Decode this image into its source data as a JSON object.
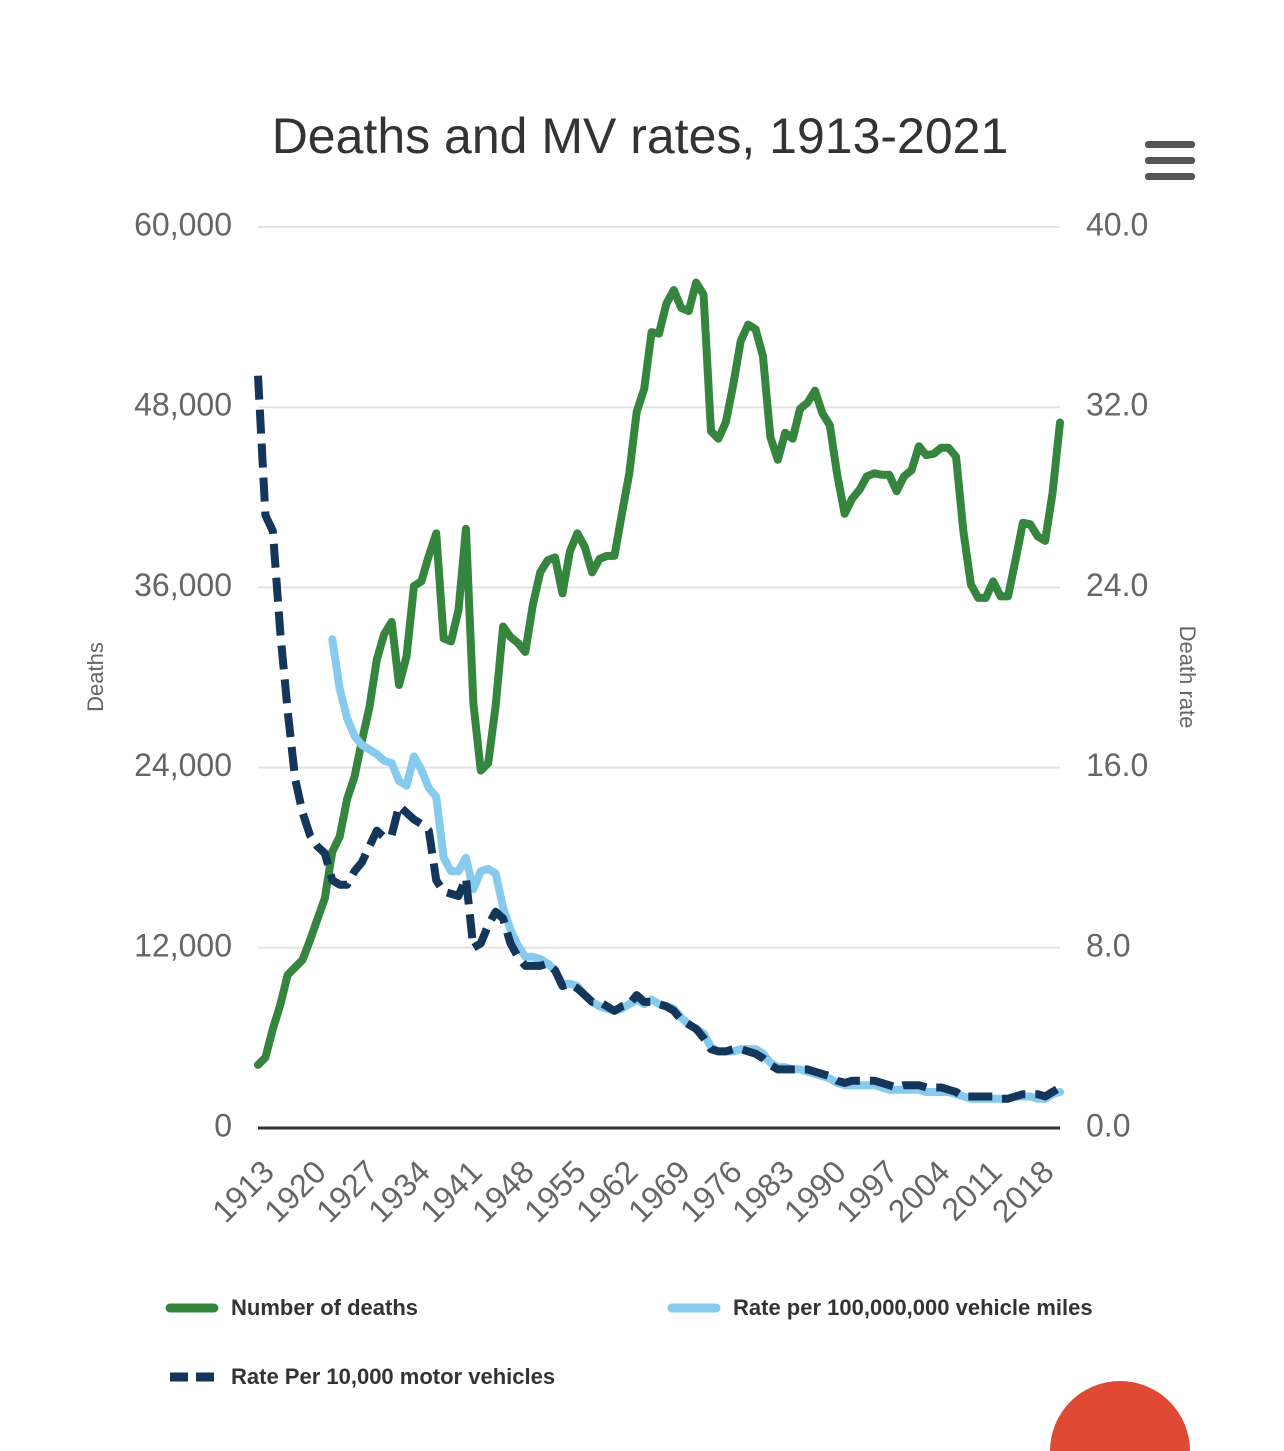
{
  "chart_data": {
    "type": "line",
    "title": "Deaths and MV rates, 1913-2021",
    "y_label": "Deaths",
    "y2_label": "Death rate",
    "x": [
      1913,
      1914,
      1915,
      1916,
      1917,
      1918,
      1919,
      1920,
      1921,
      1922,
      1923,
      1924,
      1925,
      1926,
      1927,
      1928,
      1929,
      1930,
      1931,
      1932,
      1933,
      1934,
      1935,
      1936,
      1937,
      1938,
      1939,
      1940,
      1941,
      1942,
      1943,
      1944,
      1945,
      1946,
      1947,
      1948,
      1949,
      1950,
      1951,
      1952,
      1953,
      1954,
      1955,
      1956,
      1957,
      1958,
      1959,
      1960,
      1961,
      1962,
      1963,
      1964,
      1965,
      1966,
      1967,
      1968,
      1969,
      1970,
      1971,
      1972,
      1973,
      1974,
      1975,
      1976,
      1977,
      1978,
      1979,
      1980,
      1981,
      1982,
      1983,
      1984,
      1985,
      1986,
      1987,
      1988,
      1989,
      1990,
      1991,
      1992,
      1993,
      1994,
      1995,
      1996,
      1997,
      1998,
      1999,
      2000,
      2001,
      2002,
      2003,
      2004,
      2005,
      2006,
      2007,
      2008,
      2009,
      2010,
      2011,
      2012,
      2013,
      2014,
      2015,
      2016,
      2017,
      2018,
      2019,
      2020,
      2021
    ],
    "xlim": [
      1913,
      2021
    ],
    "xticks": [
      1913,
      1920,
      1927,
      1934,
      1941,
      1948,
      1955,
      1962,
      1969,
      1976,
      1983,
      1990,
      1997,
      2004,
      2011,
      2018
    ],
    "ylim": [
      0,
      60000
    ],
    "yticks": [
      0,
      {
        "value": 12000,
        "label": "12,000"
      },
      {
        "value": 24000,
        "label": "24,000"
      },
      {
        "value": 36000,
        "label": "36,000"
      },
      {
        "value": 48000,
        "label": "48,000"
      },
      {
        "value": 60000,
        "label": "60,000"
      }
    ],
    "y2lim": [
      0,
      40
    ],
    "y2ticks": [
      {
        "value": 0,
        "label": "0.0"
      },
      {
        "value": 8,
        "label": "8.0"
      },
      {
        "value": 16,
        "label": "16.0"
      },
      {
        "value": 24,
        "label": "24.0"
      },
      {
        "value": 32,
        "label": "32.0"
      },
      {
        "value": 40,
        "label": "40.0"
      }
    ],
    "grid": true,
    "series": [
      {
        "name": "Number of deaths",
        "color": "#35853f",
        "line_style": "solid",
        "values": [
          4200,
          4700,
          6600,
          8200,
          10200,
          10700,
          11200,
          12500,
          13900,
          15300,
          18400,
          19400,
          21900,
          23400,
          25800,
          28000,
          31200,
          32900,
          33700,
          29500,
          31400,
          36100,
          36400,
          38100,
          39600,
          32600,
          32400,
          34500,
          39900,
          28300,
          23800,
          24300,
          28100,
          33400,
          32700,
          32300,
          31700,
          34800,
          37000,
          37800,
          38000,
          35600,
          38400,
          39600,
          38700,
          37000,
          37900,
          38100,
          38100,
          40900,
          43600,
          47700,
          49200,
          53000,
          52900,
          54900,
          55800,
          54600,
          54400,
          56300,
          55500,
          46400,
          45900,
          47000,
          49500,
          52400,
          53500,
          53200,
          51400,
          46000,
          44500,
          46300,
          45900,
          47900,
          48300,
          49100,
          47600,
          46800,
          43500,
          40900,
          41900,
          42500,
          43400,
          43600,
          43500,
          43500,
          42400,
          43400,
          43800,
          45400,
          44800,
          44900,
          45300,
          45300,
          44700,
          39700,
          36200,
          35300,
          35300,
          36400,
          35400,
          35400,
          37800,
          40300,
          40200,
          39400,
          39100,
          42300,
          46980
        ]
      },
      {
        "name": "Rate per 100,000,000 vehicle miles",
        "color": "#86cbee",
        "line_style": "solid",
        "axis": "y2",
        "values": [
          null,
          null,
          null,
          null,
          null,
          null,
          null,
          null,
          null,
          null,
          21.7,
          19.5,
          18.2,
          17.4,
          17,
          16.8,
          16.6,
          16.3,
          16.2,
          15.4,
          15.2,
          16.5,
          15.9,
          15.1,
          14.7,
          12,
          11.4,
          11.4,
          12,
          10.6,
          11.4,
          11.5,
          11.3,
          9.8,
          8.8,
          8.1,
          7.6,
          7.6,
          7.5,
          7.3,
          7,
          6.4,
          6.4,
          6.3,
          5.9,
          5.6,
          5.4,
          5.3,
          5.2,
          5.3,
          5.5,
          5.7,
          5.5,
          5.7,
          5.5,
          5.4,
          5.3,
          4.9,
          4.6,
          4.4,
          4.2,
          3.6,
          3.4,
          3.4,
          3.4,
          3.5,
          3.5,
          3.5,
          3.3,
          2.9,
          2.7,
          2.7,
          2.6,
          2.6,
          2.5,
          2.4,
          2.3,
          2.2,
          2,
          1.9,
          1.9,
          1.9,
          1.9,
          1.9,
          1.8,
          1.7,
          1.7,
          1.7,
          1.7,
          1.7,
          1.6,
          1.6,
          1.6,
          1.6,
          1.5,
          1.4,
          1.3,
          1.3,
          1.3,
          1.3,
          1.3,
          1.3,
          1.4,
          1.4,
          1.4,
          1.3,
          1.3,
          1.5,
          1.6
        ]
      },
      {
        "name": "Rate Per 10,000 motor vehicles",
        "color": "#14365a",
        "line_style": "dashed",
        "axis": "y2",
        "values": [
          33.4,
          27.2,
          26.5,
          22,
          18.5,
          15.5,
          14,
          13,
          12.5,
          12.2,
          11,
          10.8,
          10.8,
          11.4,
          11.8,
          12.5,
          13.2,
          12.9,
          13,
          14.3,
          14,
          13.7,
          13.5,
          13.2,
          11,
          10.5,
          10.4,
          10.3,
          11.1,
          8,
          8.2,
          9,
          9.6,
          9.3,
          8.2,
          7.6,
          7.2,
          7.2,
          7.2,
          7.3,
          7,
          6.3,
          6.4,
          6.2,
          5.9,
          5.6,
          5.6,
          5.4,
          5.2,
          5.4,
          5.5,
          5.9,
          5.6,
          5.6,
          5.5,
          5.4,
          5.2,
          4.8,
          4.6,
          4.4,
          4,
          3.5,
          3.4,
          3.4,
          3.5,
          3.5,
          3.4,
          3.3,
          3.1,
          2.8,
          2.6,
          2.6,
          2.6,
          2.6,
          2.6,
          2.5,
          2.4,
          2.3,
          2.1,
          2,
          2.1,
          2.1,
          2.1,
          2.1,
          2,
          1.9,
          1.8,
          1.9,
          1.9,
          1.9,
          1.8,
          1.8,
          1.8,
          1.7,
          1.6,
          1.4,
          1.4,
          1.4,
          1.4,
          1.4,
          1.3,
          1.3,
          1.4,
          1.5,
          1.5,
          1.5,
          1.4,
          1.6,
          1.8
        ]
      }
    ]
  }
}
